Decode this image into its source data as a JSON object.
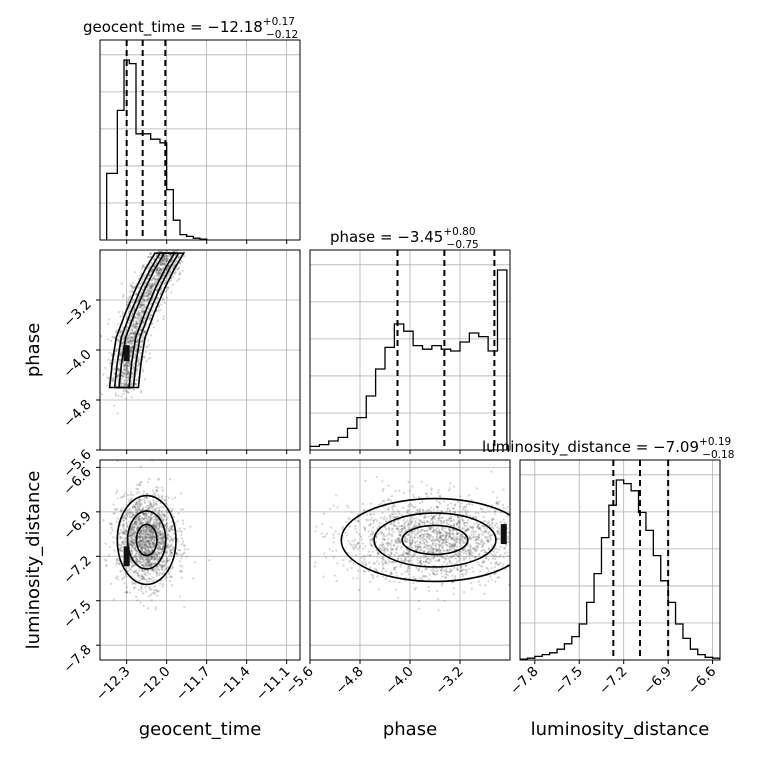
{
  "chart_data": {
    "type": "corner",
    "parameters": [
      "geocent_time",
      "phase",
      "luminosity_distance"
    ],
    "titles": [
      {
        "param": "geocent_time",
        "text": "geocent_time = −12.18",
        "plus": "+0.17",
        "minus": "−0.12"
      },
      {
        "param": "phase",
        "text": "phase = −3.45",
        "plus": "+0.80",
        "minus": "−0.75"
      },
      {
        "param": "luminosity_distance",
        "text": "luminosity_distance = −7.09",
        "plus": "+0.19",
        "minus": "−0.18"
      }
    ],
    "axes": {
      "geocent_time": {
        "range": [
          -12.5,
          -11.0
        ],
        "ticks": [
          -12.3,
          -12.0,
          -11.7,
          -11.4,
          -11.1
        ],
        "tick_labels": [
          "−12.3",
          "−12.0",
          "−11.7",
          "−11.4",
          "−11.1"
        ]
      },
      "phase": {
        "range": [
          -5.6,
          -2.4
        ],
        "ticks": [
          -5.6,
          -4.8,
          -4.0,
          -3.2
        ],
        "tick_labels": [
          "−5.6",
          "−4.8",
          "−4.0",
          "−3.2"
        ]
      },
      "luminosity_distance": {
        "range": [
          -7.9,
          -6.55
        ],
        "ticks": [
          -7.8,
          -7.5,
          -7.2,
          -6.9,
          -6.6
        ],
        "tick_labels": [
          "−7.8",
          "−7.5",
          "−7.2",
          "−6.9",
          "−6.6"
        ]
      }
    },
    "quantiles": {
      "geocent_time": [
        -12.3,
        -12.18,
        -12.01
      ],
      "phase": [
        -4.2,
        -3.45,
        -2.65
      ],
      "luminosity_distance": [
        -7.27,
        -7.09,
        -6.9
      ]
    },
    "histograms": {
      "geocent_time": {
        "edges": [
          -12.45,
          -12.37,
          -12.32,
          -12.28,
          -12.23,
          -12.18,
          -12.12,
          -12.05,
          -12.0,
          -11.95,
          -11.9,
          -11.85,
          -11.8,
          -11.75,
          -11.7
        ],
        "counts": [
          0.37,
          0.72,
          1.0,
          0.98,
          0.59,
          0.59,
          0.56,
          0.54,
          0.28,
          0.11,
          0.03,
          0.02,
          0.01,
          0.005
        ]
      },
      "phase": {
        "edges": [
          -5.6,
          -5.45,
          -5.3,
          -5.15,
          -5.0,
          -4.85,
          -4.7,
          -4.55,
          -4.4,
          -4.25,
          -4.1,
          -3.95,
          -3.8,
          -3.65,
          -3.5,
          -3.35,
          -3.2,
          -3.05,
          -2.9,
          -2.75,
          -2.6,
          -2.45
        ],
        "counts": [
          0.02,
          0.03,
          0.05,
          0.07,
          0.12,
          0.18,
          0.3,
          0.45,
          0.57,
          0.7,
          0.66,
          0.58,
          0.56,
          0.58,
          0.56,
          0.55,
          0.6,
          0.65,
          0.63,
          0.55,
          1.0
        ]
      },
      "luminosity_distance": {
        "edges": [
          -7.9,
          -7.85,
          -7.8,
          -7.75,
          -7.7,
          -7.65,
          -7.6,
          -7.55,
          -7.5,
          -7.45,
          -7.4,
          -7.35,
          -7.3,
          -7.25,
          -7.2,
          -7.15,
          -7.1,
          -7.05,
          -7.0,
          -6.95,
          -6.9,
          -6.85,
          -6.8,
          -6.75,
          -6.7,
          -6.65,
          -6.6,
          -6.55
        ],
        "counts": [
          0.005,
          0.01,
          0.02,
          0.03,
          0.04,
          0.06,
          0.09,
          0.13,
          0.2,
          0.32,
          0.48,
          0.68,
          0.86,
          1.0,
          0.98,
          0.94,
          0.82,
          0.72,
          0.58,
          0.44,
          0.32,
          0.2,
          0.12,
          0.06,
          0.03,
          0.015,
          0.01
        ]
      }
    },
    "density_2d": {
      "phase_vs_geocent_time": {
        "x_param": "geocent_time",
        "y_param": "phase",
        "path": [
          [
            -12.32,
            -4.6
          ],
          [
            -12.3,
            -4.2
          ],
          [
            -12.27,
            -3.8
          ],
          [
            -12.2,
            -3.4
          ],
          [
            -12.12,
            -3.0
          ],
          [
            -12.05,
            -2.7
          ],
          [
            -11.98,
            -2.45
          ]
        ],
        "spread_x": 0.06,
        "peak": [
          -12.3,
          -4.05
        ]
      },
      "luminosity_distance_vs_geocent_time": {
        "x_param": "geocent_time",
        "y_param": "luminosity_distance",
        "center": [
          -12.15,
          -7.09
        ],
        "sigma": [
          0.11,
          0.15
        ],
        "peak": [
          -12.3,
          -7.2
        ]
      },
      "luminosity_distance_vs_phase": {
        "x_param": "phase",
        "y_param": "luminosity_distance",
        "center": [
          -3.6,
          -7.09
        ],
        "sigma": [
          0.75,
          0.14
        ],
        "peak": [
          -2.5,
          -7.05
        ]
      }
    },
    "grid": true,
    "colors": {
      "hist": "#000000",
      "samples": "#555555",
      "grid": "#b0b0b0",
      "quantile": "#000000"
    }
  }
}
